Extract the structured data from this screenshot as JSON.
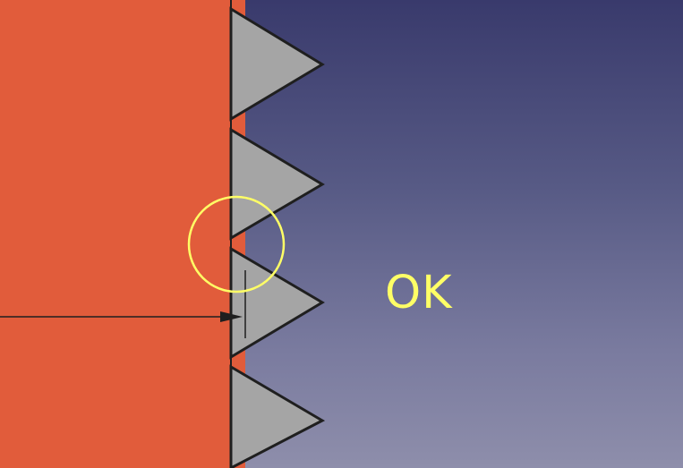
{
  "viewport": {
    "status_text": "OK"
  },
  "colors": {
    "background_top": "#393a6c",
    "background_bottom": "#8e8eab",
    "body_fill": "#e15c3b",
    "tooth_fill": "#a5a5a5",
    "outline": "#1f1f1f",
    "highlight": "#ffff66",
    "status_text": "#ffff66"
  },
  "icons": {
    "highlight_marker": "circle-outline",
    "pointer": "arrow-right"
  }
}
